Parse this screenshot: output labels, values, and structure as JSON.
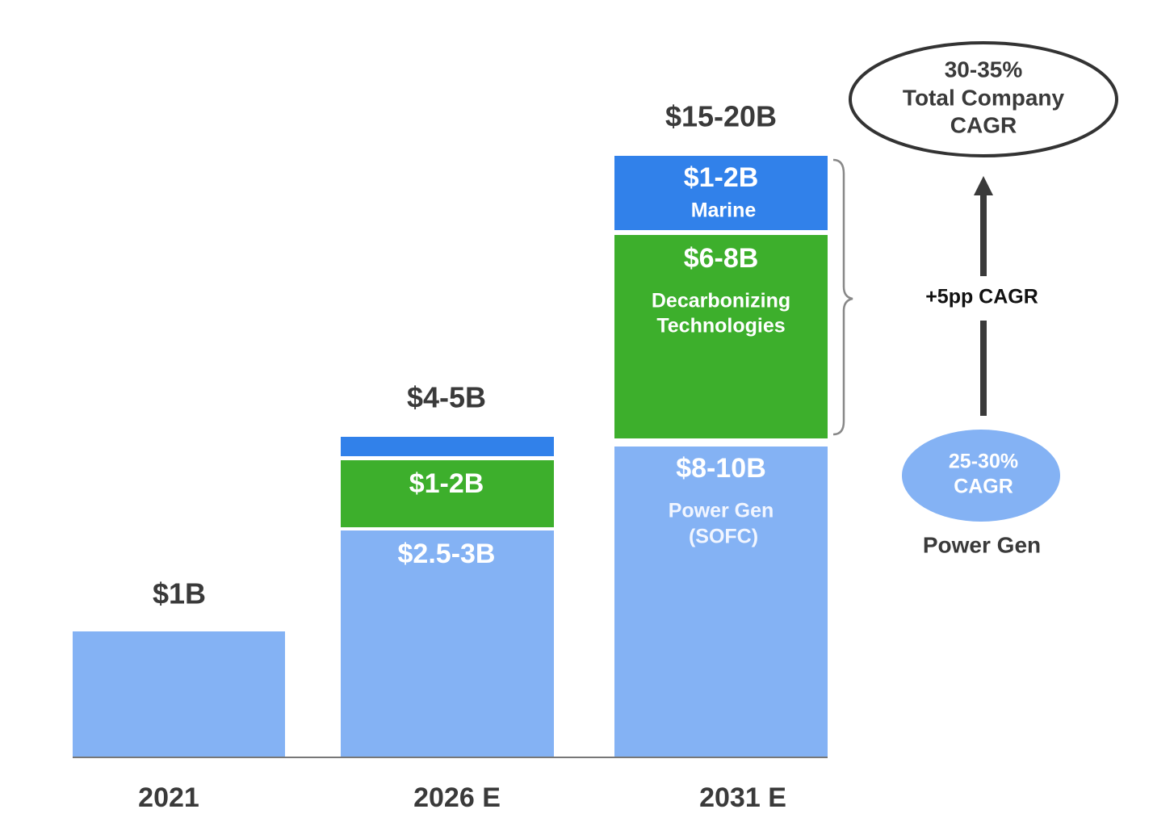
{
  "bars": [
    {
      "year": "2021",
      "total": "$1B"
    },
    {
      "year": "2026 E",
      "total": "$4-5B",
      "segments": [
        {
          "value": "$2.5-3B"
        },
        {
          "value": "$1-2B"
        }
      ]
    },
    {
      "year": "2031 E",
      "total": "$15-20B",
      "segments": [
        {
          "value": "$8-10B",
          "label": [
            "Power Gen",
            "(SOFC)"
          ]
        },
        {
          "value": "$6-8B",
          "label": [
            "Decarbonizing",
            "Technologies"
          ]
        },
        {
          "value": "$1-2B",
          "label": [
            "Marine"
          ]
        }
      ]
    }
  ],
  "growth": {
    "step": "+5pp CAGR",
    "base": {
      "rate": [
        "25-30%",
        "CAGR"
      ],
      "label": "Power Gen"
    },
    "total": [
      "30-35%",
      "Total Company",
      "CAGR"
    ]
  }
}
